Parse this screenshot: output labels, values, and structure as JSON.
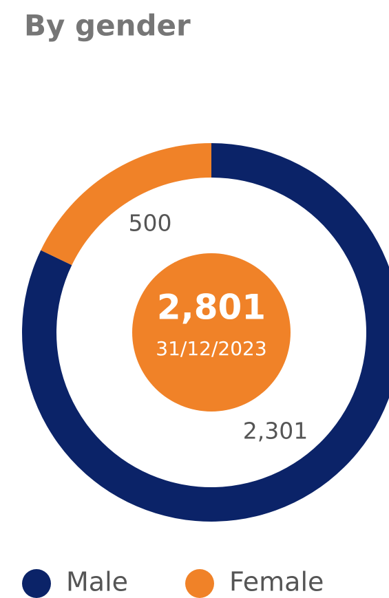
{
  "chart_data": {
    "type": "donut",
    "title": "By gender",
    "categories": [
      "Male",
      "Female"
    ],
    "values": [
      2301,
      500
    ],
    "value_labels": [
      "2,301",
      "500"
    ],
    "colors": [
      "#0b2368",
      "#f08228"
    ],
    "center_value": 2801,
    "center_value_label": "2,801",
    "center_date": "31/12/2023"
  }
}
